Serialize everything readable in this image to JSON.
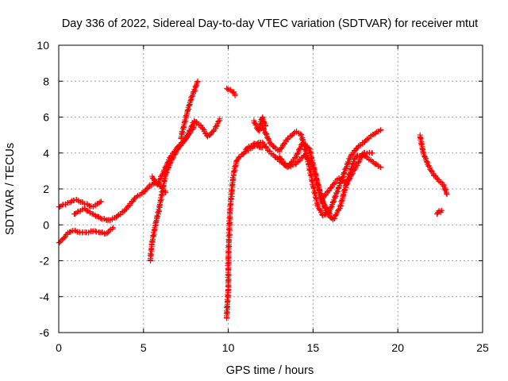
{
  "chart_data": {
    "type": "scatter",
    "title": "Day 336 of 2022, Sidereal Day-to-day VTEC variation (SDTVAR) for receiver mtut",
    "xlabel": "GPS time / hours",
    "ylabel": "SDTVAR / TECUs",
    "xlim": [
      0,
      25
    ],
    "ylim": [
      -6,
      10
    ],
    "xticks": [
      0,
      5,
      10,
      15,
      20,
      25
    ],
    "yticks": [
      -6,
      -4,
      -2,
      0,
      2,
      4,
      6,
      8,
      10
    ],
    "xtick_labels": [
      "0",
      "5",
      "10",
      "15",
      "20",
      "25"
    ],
    "ytick_labels": [
      "-6",
      "-4",
      "-2",
      "0",
      "2",
      "4",
      "6",
      "8",
      "10"
    ],
    "grid": true,
    "marker": "+",
    "series_color": "#ff0000",
    "traces": [
      {
        "name": "t1",
        "x": [
          0,
          0.5,
          1.0,
          1.5,
          2.0,
          2.5
        ],
        "y": [
          1.0,
          1.2,
          1.4,
          1.2,
          1.0,
          1.3
        ]
      },
      {
        "name": "t2",
        "x": [
          0,
          0.25,
          0.5,
          0.8,
          1.2,
          1.6,
          2.0,
          2.4,
          2.8,
          3.2
        ],
        "y": [
          -1.0,
          -0.8,
          -0.5,
          -0.3,
          -0.4,
          -0.45,
          -0.35,
          -0.4,
          -0.5,
          -0.15
        ]
      },
      {
        "name": "t3",
        "x": [
          0.9,
          1.5,
          2.0,
          2.5,
          3.0,
          3.5,
          4.0,
          4.5,
          5.0,
          5.4,
          5.8,
          6.3
        ],
        "y": [
          0.6,
          0.9,
          0.6,
          0.35,
          0.25,
          0.5,
          0.9,
          1.5,
          1.8,
          2.2,
          2.4,
          1.8
        ]
      },
      {
        "name": "t4",
        "x": [
          5.4,
          5.5,
          5.7,
          5.9,
          6.1,
          6.3,
          6.6,
          7.0,
          7.5,
          8.0
        ],
        "y": [
          -2.0,
          -1.0,
          0.0,
          0.8,
          1.8,
          2.8,
          3.5,
          4.2,
          4.8,
          5.5
        ]
      },
      {
        "name": "t5",
        "x": [
          5.5,
          5.8,
          6.0,
          6.2,
          6.6,
          7.0,
          7.5,
          8.0,
          8.4,
          8.8,
          9.2,
          9.5
        ],
        "y": [
          2.7,
          2.2,
          2.6,
          3.0,
          3.8,
          4.3,
          4.8,
          5.8,
          5.5,
          4.9,
          5.3,
          5.9
        ]
      },
      {
        "name": "t6",
        "x": [
          7.2,
          7.5,
          7.8,
          8.0,
          8.2
        ],
        "y": [
          4.8,
          6.0,
          7.0,
          7.5,
          8.0
        ]
      },
      {
        "name": "t7",
        "x": [
          9.9,
          10.0,
          10.0,
          10.05,
          10.1,
          10.2,
          10.3,
          10.5,
          10.8,
          11.2,
          11.6,
          12.0
        ],
        "y": [
          -5.2,
          -3.5,
          -2.0,
          -0.5,
          0.8,
          1.8,
          2.8,
          3.6,
          3.9,
          4.2,
          4.4,
          4.3
        ]
      },
      {
        "name": "t8",
        "x": [
          9.9,
          10.1,
          10.3,
          10.4
        ],
        "y": [
          7.6,
          7.5,
          7.4,
          7.2
        ]
      },
      {
        "name": "t9",
        "x": [
          11.5,
          11.8,
          12.0,
          12.2
        ],
        "y": [
          5.8,
          5.2,
          6.0,
          5.5
        ]
      },
      {
        "name": "t10",
        "x": [
          12.0,
          12.5,
          13.0,
          13.5,
          14.0,
          14.3,
          14.6,
          15.0,
          15.3,
          15.6,
          16.0,
          16.4,
          16.8,
          17.2,
          17.6,
          18.0,
          18.5,
          19.0
        ],
        "y": [
          5.5,
          4.5,
          4.1,
          4.8,
          5.2,
          5.0,
          4.0,
          2.2,
          1.0,
          0.5,
          0.8,
          1.8,
          2.8,
          3.8,
          4.3,
          4.6,
          5.0,
          5.3
        ]
      },
      {
        "name": "t11",
        "x": [
          11.0,
          11.5,
          12.0,
          12.5,
          13.0,
          13.5,
          14.0,
          14.5,
          15.0,
          15.4,
          15.8,
          16.2,
          16.6,
          17.0,
          17.5,
          18.0,
          18.5,
          19.0
        ],
        "y": [
          4.2,
          4.5,
          4.6,
          4.0,
          3.6,
          3.2,
          3.4,
          3.9,
          3.3,
          1.8,
          0.6,
          0.3,
          1.0,
          2.4,
          3.8,
          3.9,
          3.5,
          3.2
        ]
      },
      {
        "name": "t12",
        "x": [
          13.0,
          13.5,
          14.0,
          14.4,
          14.8,
          15.2,
          15.6,
          16.0
        ],
        "y": [
          3.8,
          3.2,
          3.8,
          4.6,
          4.2,
          2.5,
          1.2,
          0.6
        ]
      },
      {
        "name": "t13",
        "x": [
          15.5,
          16.0,
          16.5,
          17.0,
          17.5,
          18.0,
          18.5
        ],
        "y": [
          1.4,
          2.0,
          2.6,
          2.3,
          3.2,
          4.0,
          4.0
        ]
      },
      {
        "name": "t14",
        "x": [
          21.3,
          21.5,
          21.8,
          22.1,
          22.4,
          22.7,
          22.9
        ],
        "y": [
          5.0,
          4.0,
          3.3,
          2.8,
          2.5,
          2.2,
          1.7
        ]
      },
      {
        "name": "t15",
        "x": [
          22.3,
          22.4,
          22.5,
          22.6
        ],
        "y": [
          0.6,
          0.75,
          0.7,
          0.8
        ]
      }
    ]
  }
}
